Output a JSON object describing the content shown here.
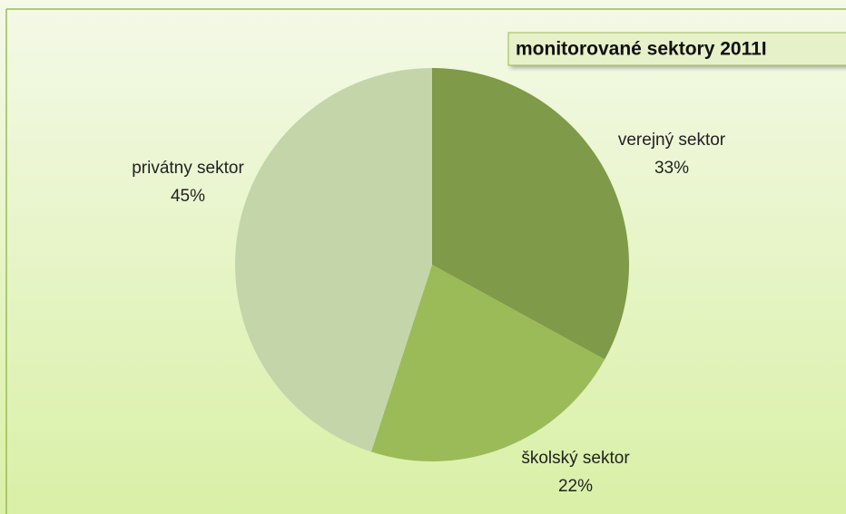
{
  "chart_data": {
    "type": "pie",
    "title": "monitorované sektory 2011I",
    "categories": [
      "verejný sektor",
      "školský sektor",
      "privátny sektor"
    ],
    "values": [
      33,
      22,
      45
    ],
    "value_labels": [
      "33%",
      "22%",
      "45%"
    ],
    "colors": [
      "#7f9a48",
      "#9bbb59",
      "#c4d5aa"
    ]
  }
}
